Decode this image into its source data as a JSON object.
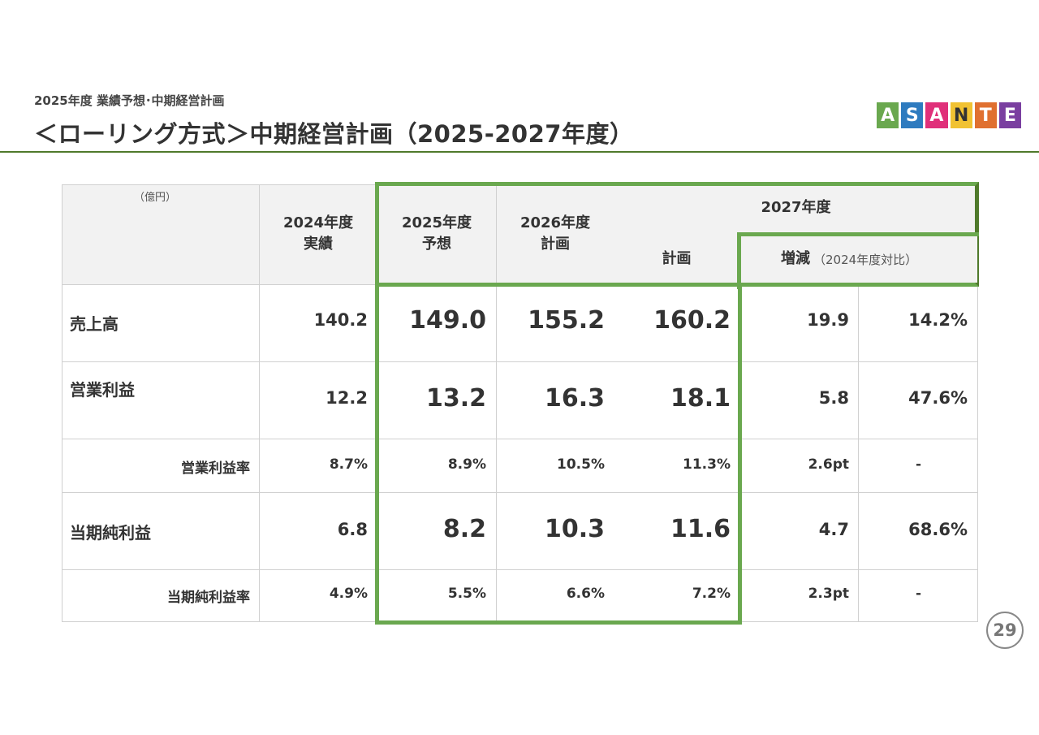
{
  "header": {
    "subtitle": "2025年度 業績予想･中期経営計画",
    "title": "＜ローリング方式＞中期経営計画（2025-2027年度）",
    "logo_text": "ASANTE",
    "logo_letters": [
      "A",
      "S",
      "A",
      "N",
      "T",
      "E"
    ]
  },
  "table": {
    "unit": "（億円）",
    "col_2024": "2024年度\n実績",
    "col_2025": "2025年度\n予想",
    "col_2026": "2026年度\n計画",
    "col_2027": "2027年度",
    "col_2027_plan": "計画",
    "col_change": "増減",
    "col_change_note": "（2024年度対比）",
    "rows": [
      {
        "label": "売上高",
        "v2024": "140.2",
        "v2025": "149.0",
        "v2026": "155.2",
        "v2027": "160.2",
        "diff": "19.9",
        "pct": "14.2%"
      },
      {
        "label": "営業利益",
        "v2024": "12.2",
        "v2025": "13.2",
        "v2026": "16.3",
        "v2027": "18.1",
        "diff": "5.8",
        "pct": "47.6%"
      },
      {
        "label": "営業利益率",
        "v2024": "8.7%",
        "v2025": "8.9%",
        "v2026": "10.5%",
        "v2027": "11.3%",
        "diff": "2.6pt",
        "pct": "-"
      },
      {
        "label": "当期純利益",
        "v2024": "6.8",
        "v2025": "8.2",
        "v2026": "10.3",
        "v2027": "11.6",
        "diff": "4.7",
        "pct": "68.6%"
      },
      {
        "label": "当期純利益率",
        "v2024": "4.9%",
        "v2025": "5.5%",
        "v2026": "6.6%",
        "v2027": "7.2%",
        "diff": "2.3pt",
        "pct": "-"
      }
    ]
  },
  "page_number": "29",
  "colors": {
    "accent_green": "#6aa84f",
    "rule_green": "#4f7a2b"
  }
}
